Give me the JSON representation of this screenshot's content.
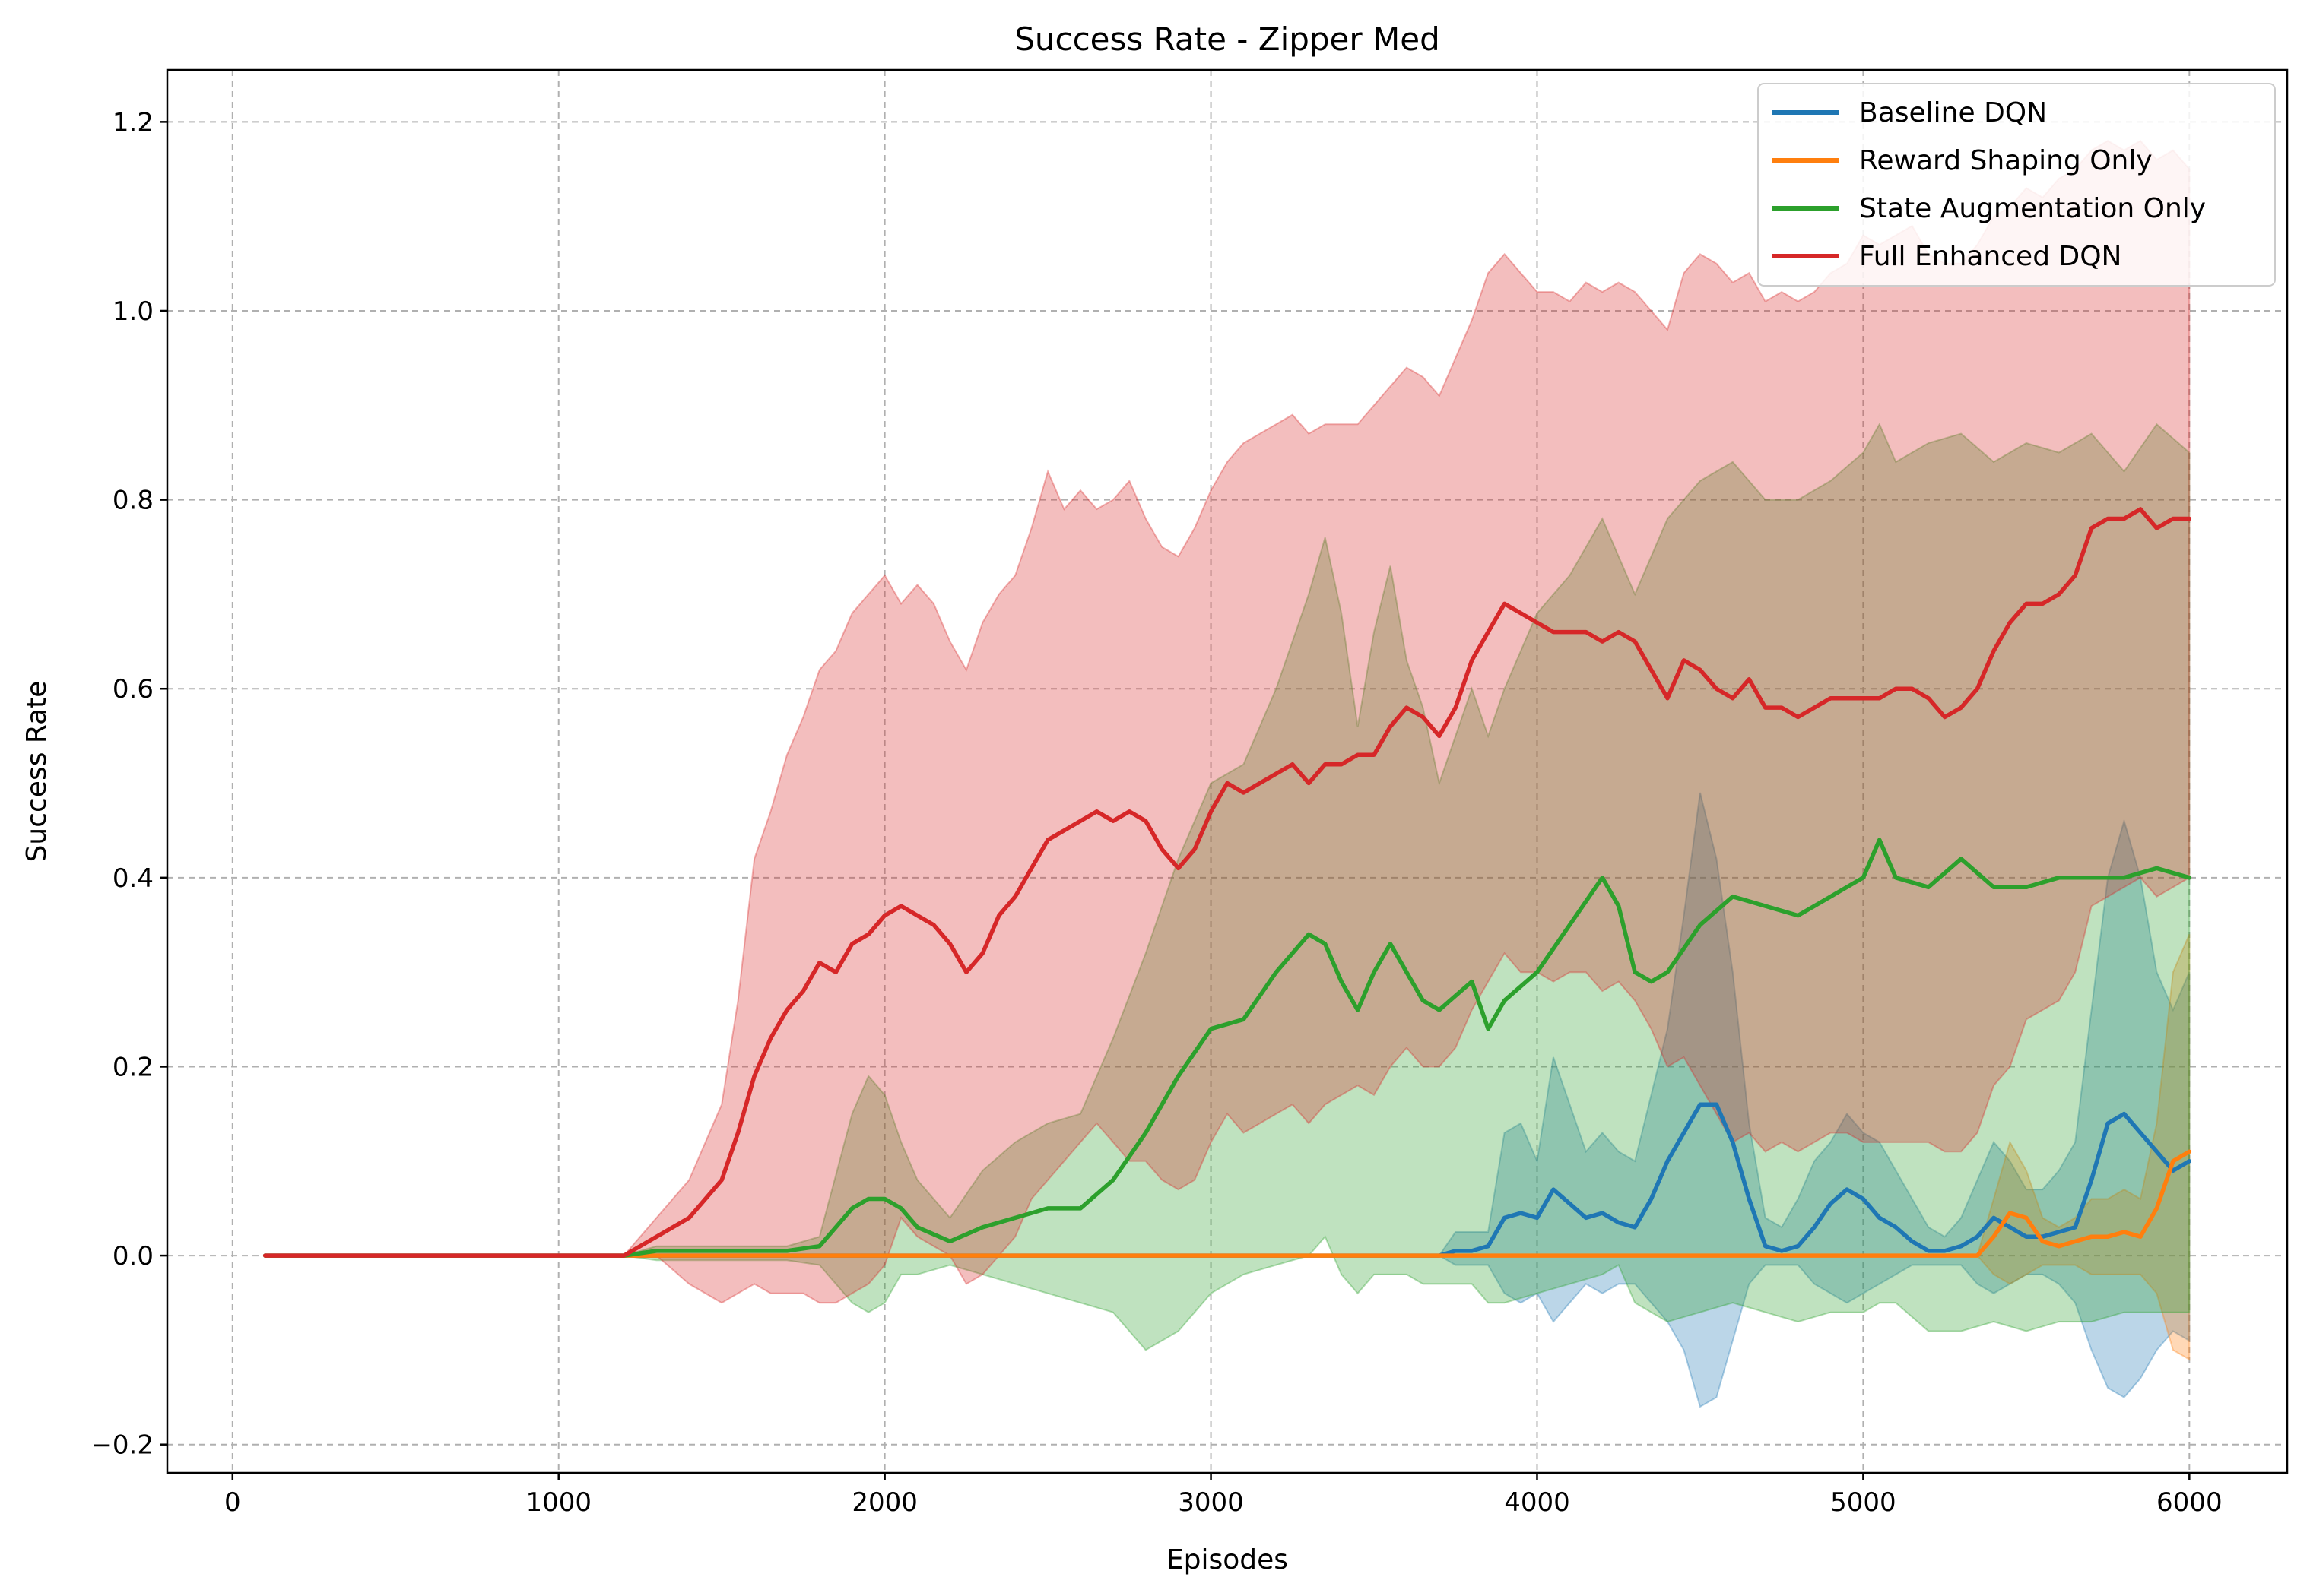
{
  "chart_data": {
    "type": "line",
    "title": "Success Rate - Zipper Med",
    "xlabel": "Episodes",
    "ylabel": "Success Rate",
    "xlim": [
      -200,
      6300
    ],
    "ylim": [
      -0.23,
      1.255
    ],
    "xticks": [
      0,
      1000,
      2000,
      3000,
      4000,
      5000,
      6000
    ],
    "xtick_labels": [
      "0",
      "1000",
      "2000",
      "3000",
      "4000",
      "5000",
      "6000"
    ],
    "yticks": [
      -0.2,
      0.0,
      0.2,
      0.4,
      0.6,
      0.8,
      1.0,
      1.2
    ],
    "ytick_labels": [
      "−0.2",
      "0.0",
      "0.2",
      "0.4",
      "0.6",
      "0.8",
      "1.0",
      "1.2"
    ],
    "grid": true,
    "legend_position": "upper right",
    "shaded_band": "mean ± std",
    "series": [
      {
        "name": "Baseline DQN",
        "color": "#1f77b4",
        "x": [
          100,
          1200,
          3700,
          3750,
          3800,
          3850,
          3900,
          3950,
          4000,
          4050,
          4100,
          4150,
          4200,
          4250,
          4300,
          4350,
          4400,
          4450,
          4500,
          4550,
          4600,
          4650,
          4700,
          4750,
          4800,
          4850,
          4900,
          4950,
          5000,
          5050,
          5100,
          5150,
          5200,
          5250,
          5300,
          5350,
          5400,
          5450,
          5500,
          5550,
          5600,
          5650,
          5700,
          5750,
          5800,
          5850,
          5900,
          5950,
          6000
        ],
        "mean": [
          0,
          0,
          0,
          0.005,
          0.005,
          0.01,
          0.04,
          0.045,
          0.04,
          0.07,
          0.055,
          0.04,
          0.045,
          0.035,
          0.03,
          0.06,
          0.1,
          0.13,
          0.16,
          0.16,
          0.12,
          0.06,
          0.01,
          0.005,
          0.01,
          0.03,
          0.055,
          0.07,
          0.06,
          0.04,
          0.03,
          0.015,
          0.005,
          0.005,
          0.01,
          0.02,
          0.04,
          0.03,
          0.02,
          0.02,
          0.025,
          0.03,
          0.08,
          0.14,
          0.15,
          0.13,
          0.11,
          0.09,
          0.1
        ],
        "upper": [
          0,
          0,
          0,
          0.025,
          0.025,
          0.025,
          0.13,
          0.14,
          0.1,
          0.21,
          0.16,
          0.11,
          0.13,
          0.11,
          0.1,
          0.17,
          0.24,
          0.36,
          0.49,
          0.42,
          0.3,
          0.14,
          0.04,
          0.03,
          0.06,
          0.1,
          0.12,
          0.15,
          0.13,
          0.12,
          0.09,
          0.06,
          0.03,
          0.02,
          0.04,
          0.08,
          0.12,
          0.1,
          0.07,
          0.07,
          0.09,
          0.12,
          0.26,
          0.4,
          0.46,
          0.4,
          0.3,
          0.26,
          0.3
        ],
        "lower": [
          0,
          0,
          0,
          -0.01,
          -0.01,
          -0.01,
          -0.04,
          -0.05,
          -0.04,
          -0.07,
          -0.05,
          -0.03,
          -0.04,
          -0.03,
          -0.03,
          -0.05,
          -0.07,
          -0.1,
          -0.16,
          -0.15,
          -0.09,
          -0.03,
          -0.01,
          -0.01,
          -0.01,
          -0.03,
          -0.04,
          -0.05,
          -0.04,
          -0.03,
          -0.02,
          -0.01,
          -0.01,
          -0.01,
          -0.01,
          -0.03,
          -0.04,
          -0.03,
          -0.02,
          -0.02,
          -0.03,
          -0.05,
          -0.1,
          -0.14,
          -0.15,
          -0.13,
          -0.1,
          -0.08,
          -0.09
        ]
      },
      {
        "name": "Reward Shaping Only",
        "color": "#ff7f0e",
        "x": [
          100,
          5350,
          5400,
          5450,
          5500,
          5550,
          5600,
          5650,
          5700,
          5750,
          5800,
          5850,
          5900,
          5950,
          6000
        ],
        "mean": [
          0,
          0,
          0.02,
          0.045,
          0.04,
          0.015,
          0.01,
          0.015,
          0.02,
          0.02,
          0.025,
          0.02,
          0.05,
          0.1,
          0.11
        ],
        "upper": [
          0,
          0,
          0.06,
          0.12,
          0.09,
          0.04,
          0.03,
          0.04,
          0.06,
          0.06,
          0.07,
          0.06,
          0.14,
          0.3,
          0.34
        ],
        "lower": [
          0,
          0,
          -0.02,
          -0.03,
          -0.02,
          -0.01,
          -0.01,
          -0.01,
          -0.02,
          -0.02,
          -0.02,
          -0.02,
          -0.04,
          -0.1,
          -0.11
        ]
      },
      {
        "name": "State Augmentation Only",
        "color": "#2ca02c",
        "x": [
          100,
          1200,
          1300,
          1400,
          1500,
          1600,
          1700,
          1800,
          1900,
          1950,
          2000,
          2050,
          2100,
          2200,
          2300,
          2400,
          2500,
          2600,
          2700,
          2800,
          2900,
          3000,
          3100,
          3200,
          3300,
          3350,
          3400,
          3450,
          3500,
          3550,
          3600,
          3650,
          3700,
          3800,
          3850,
          3900,
          4000,
          4100,
          4200,
          4250,
          4300,
          4350,
          4400,
          4500,
          4600,
          4700,
          4800,
          4900,
          5000,
          5050,
          5100,
          5200,
          5300,
          5400,
          5500,
          5600,
          5700,
          5800,
          5900,
          6000
        ],
        "mean": [
          0,
          0,
          0.005,
          0.005,
          0.005,
          0.005,
          0.005,
          0.01,
          0.05,
          0.06,
          0.06,
          0.05,
          0.03,
          0.015,
          0.03,
          0.04,
          0.05,
          0.05,
          0.08,
          0.13,
          0.19,
          0.24,
          0.25,
          0.3,
          0.34,
          0.33,
          0.29,
          0.26,
          0.3,
          0.33,
          0.3,
          0.27,
          0.26,
          0.29,
          0.24,
          0.27,
          0.3,
          0.35,
          0.4,
          0.37,
          0.3,
          0.29,
          0.3,
          0.35,
          0.38,
          0.37,
          0.36,
          0.38,
          0.4,
          0.44,
          0.4,
          0.39,
          0.42,
          0.39,
          0.39,
          0.4,
          0.4,
          0.4,
          0.41,
          0.4
        ],
        "upper": [
          0,
          0,
          0.01,
          0.01,
          0.01,
          0.01,
          0.01,
          0.02,
          0.15,
          0.19,
          0.17,
          0.12,
          0.08,
          0.04,
          0.09,
          0.12,
          0.14,
          0.15,
          0.23,
          0.32,
          0.42,
          0.5,
          0.52,
          0.6,
          0.7,
          0.76,
          0.68,
          0.56,
          0.66,
          0.73,
          0.63,
          0.58,
          0.5,
          0.6,
          0.55,
          0.6,
          0.68,
          0.72,
          0.78,
          0.74,
          0.7,
          0.74,
          0.78,
          0.82,
          0.84,
          0.8,
          0.8,
          0.82,
          0.85,
          0.88,
          0.84,
          0.86,
          0.87,
          0.84,
          0.86,
          0.85,
          0.87,
          0.83,
          0.88,
          0.85
        ],
        "lower": [
          0,
          0,
          -0.005,
          -0.005,
          -0.005,
          -0.005,
          -0.005,
          -0.01,
          -0.05,
          -0.06,
          -0.05,
          -0.02,
          -0.02,
          -0.01,
          -0.02,
          -0.03,
          -0.04,
          -0.05,
          -0.06,
          -0.1,
          -0.08,
          -0.04,
          -0.02,
          -0.01,
          0.0,
          0.02,
          -0.02,
          -0.04,
          -0.02,
          -0.02,
          -0.02,
          -0.03,
          -0.03,
          -0.03,
          -0.05,
          -0.05,
          -0.04,
          -0.03,
          -0.02,
          -0.01,
          -0.05,
          -0.06,
          -0.07,
          -0.06,
          -0.05,
          -0.06,
          -0.07,
          -0.06,
          -0.06,
          -0.05,
          -0.05,
          -0.08,
          -0.08,
          -0.07,
          -0.08,
          -0.07,
          -0.07,
          -0.06,
          -0.06,
          -0.06
        ]
      },
      {
        "name": "Full Enhanced DQN",
        "color": "#d62728",
        "x": [
          100,
          1200,
          1300,
          1400,
          1500,
          1550,
          1600,
          1650,
          1700,
          1750,
          1800,
          1850,
          1900,
          1950,
          2000,
          2050,
          2100,
          2150,
          2200,
          2250,
          2300,
          2350,
          2400,
          2450,
          2500,
          2550,
          2600,
          2650,
          2700,
          2750,
          2800,
          2850,
          2900,
          2950,
          3000,
          3050,
          3100,
          3150,
          3200,
          3250,
          3300,
          3350,
          3400,
          3450,
          3500,
          3550,
          3600,
          3650,
          3700,
          3750,
          3800,
          3850,
          3900,
          3950,
          4000,
          4050,
          4100,
          4150,
          4200,
          4250,
          4300,
          4350,
          4400,
          4450,
          4500,
          4550,
          4600,
          4650,
          4700,
          4750,
          4800,
          4850,
          4900,
          4950,
          5000,
          5050,
          5100,
          5150,
          5200,
          5250,
          5300,
          5350,
          5400,
          5450,
          5500,
          5550,
          5600,
          5650,
          5700,
          5750,
          5800,
          5850,
          5900,
          5950,
          6000
        ],
        "mean": [
          0,
          0,
          0.02,
          0.04,
          0.08,
          0.13,
          0.19,
          0.23,
          0.26,
          0.28,
          0.31,
          0.3,
          0.33,
          0.34,
          0.36,
          0.37,
          0.36,
          0.35,
          0.33,
          0.3,
          0.32,
          0.36,
          0.38,
          0.41,
          0.44,
          0.45,
          0.46,
          0.47,
          0.46,
          0.47,
          0.46,
          0.43,
          0.41,
          0.43,
          0.47,
          0.5,
          0.49,
          0.5,
          0.51,
          0.52,
          0.5,
          0.52,
          0.52,
          0.53,
          0.53,
          0.56,
          0.58,
          0.57,
          0.55,
          0.58,
          0.63,
          0.66,
          0.69,
          0.68,
          0.67,
          0.66,
          0.66,
          0.66,
          0.65,
          0.66,
          0.65,
          0.62,
          0.59,
          0.63,
          0.62,
          0.6,
          0.59,
          0.61,
          0.58,
          0.58,
          0.57,
          0.58,
          0.59,
          0.59,
          0.59,
          0.59,
          0.6,
          0.6,
          0.59,
          0.57,
          0.58,
          0.6,
          0.64,
          0.67,
          0.69,
          0.69,
          0.7,
          0.72,
          0.77,
          0.78,
          0.78,
          0.79,
          0.77,
          0.78,
          0.78
        ],
        "upper": [
          0,
          0,
          0.04,
          0.08,
          0.16,
          0.27,
          0.42,
          0.47,
          0.53,
          0.57,
          0.62,
          0.64,
          0.68,
          0.7,
          0.72,
          0.69,
          0.71,
          0.69,
          0.65,
          0.62,
          0.67,
          0.7,
          0.72,
          0.77,
          0.83,
          0.79,
          0.81,
          0.79,
          0.8,
          0.82,
          0.78,
          0.75,
          0.74,
          0.77,
          0.81,
          0.84,
          0.86,
          0.87,
          0.88,
          0.89,
          0.87,
          0.88,
          0.88,
          0.88,
          0.9,
          0.92,
          0.94,
          0.93,
          0.91,
          0.95,
          0.99,
          1.04,
          1.06,
          1.04,
          1.02,
          1.02,
          1.01,
          1.03,
          1.02,
          1.03,
          1.02,
          1.0,
          0.98,
          1.04,
          1.06,
          1.05,
          1.03,
          1.04,
          1.01,
          1.02,
          1.01,
          1.02,
          1.04,
          1.05,
          1.08,
          1.07,
          1.08,
          1.09,
          1.06,
          1.05,
          1.05,
          1.07,
          1.1,
          1.11,
          1.13,
          1.12,
          1.14,
          1.15,
          1.17,
          1.18,
          1.17,
          1.18,
          1.16,
          1.17,
          1.15
        ],
        "lower": [
          0,
          0,
          0.0,
          -0.03,
          -0.05,
          -0.04,
          -0.03,
          -0.04,
          -0.04,
          -0.04,
          -0.05,
          -0.05,
          -0.04,
          -0.03,
          -0.01,
          0.04,
          0.02,
          0.01,
          0.0,
          -0.03,
          -0.02,
          0.0,
          0.02,
          0.06,
          0.08,
          0.1,
          0.12,
          0.14,
          0.12,
          0.1,
          0.1,
          0.08,
          0.07,
          0.08,
          0.12,
          0.15,
          0.13,
          0.14,
          0.15,
          0.16,
          0.14,
          0.16,
          0.17,
          0.18,
          0.17,
          0.2,
          0.22,
          0.2,
          0.2,
          0.22,
          0.26,
          0.29,
          0.32,
          0.3,
          0.3,
          0.29,
          0.3,
          0.3,
          0.28,
          0.29,
          0.27,
          0.24,
          0.2,
          0.21,
          0.18,
          0.15,
          0.12,
          0.13,
          0.11,
          0.12,
          0.11,
          0.12,
          0.13,
          0.13,
          0.12,
          0.12,
          0.12,
          0.12,
          0.12,
          0.11,
          0.11,
          0.13,
          0.18,
          0.2,
          0.25,
          0.26,
          0.27,
          0.3,
          0.37,
          0.38,
          0.39,
          0.4,
          0.38,
          0.39,
          0.4
        ]
      }
    ]
  }
}
